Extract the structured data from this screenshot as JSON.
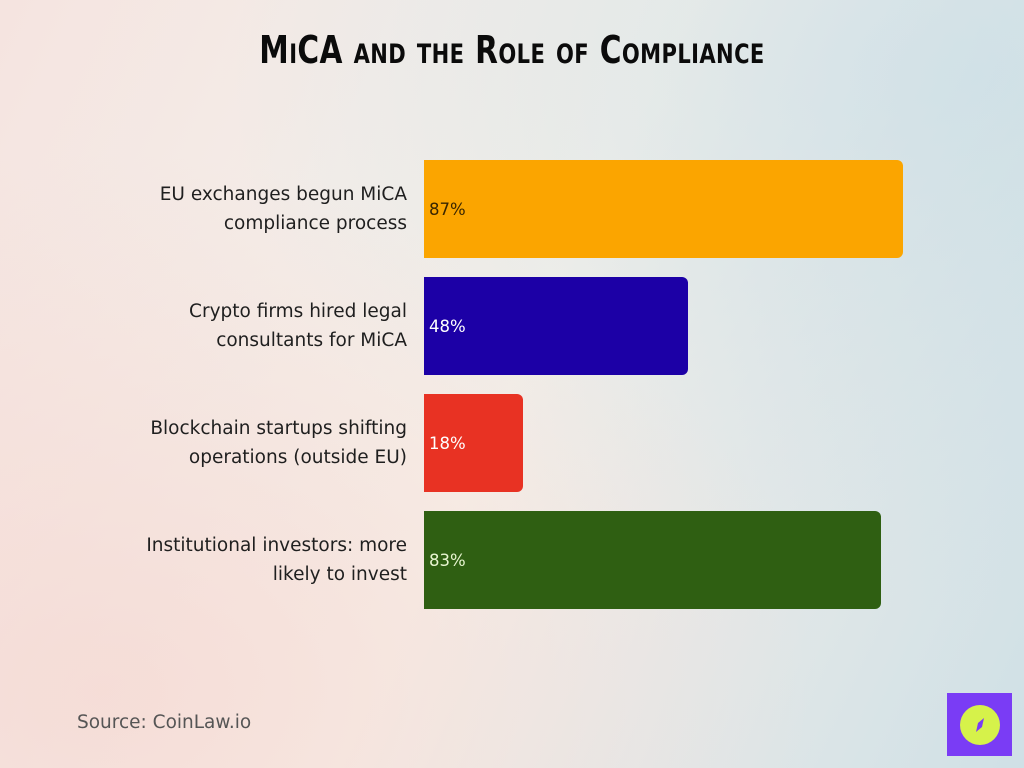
{
  "title": "MiCA and the Role of Compliance",
  "source": "Source: CoinLaw.io",
  "logo": {
    "icon": "compass-icon",
    "bg_color": "#7a3cf5",
    "fg_color": "#d6f24a"
  },
  "bars": [
    {
      "label_line1": "EU exchanges begun MiCA",
      "label_line2": "compliance process",
      "value": 87,
      "value_label": "87%",
      "color": "#fba500",
      "text_color": "#3a2600"
    },
    {
      "label_line1": "Crypto firms hired legal",
      "label_line2": "consultants for MiCA",
      "value": 48,
      "value_label": "48%",
      "color": "#1c00a6",
      "text_color": "#ffffff"
    },
    {
      "label_line1": "Blockchain startups shifting",
      "label_line2": "operations (outside EU)",
      "value": 18,
      "value_label": "18%",
      "color": "#e83223",
      "text_color": "#ffffff"
    },
    {
      "label_line1": "Institutional investors: more",
      "label_line2": "likely to invest",
      "value": 83,
      "value_label": "83%",
      "color": "#2f5f12",
      "text_color": "#e8f5d0"
    }
  ],
  "chart_data": {
    "type": "bar",
    "orientation": "horizontal",
    "title": "MiCA and the Role of Compliance",
    "categories": [
      "EU exchanges begun MiCA compliance process",
      "Crypto firms hired legal consultants for MiCA",
      "Blockchain startups shifting operations (outside EU)",
      "Institutional investors: more likely to invest"
    ],
    "values": [
      87,
      48,
      18,
      83
    ],
    "value_labels": [
      "87%",
      "48%",
      "18%",
      "83%"
    ],
    "colors": [
      "#fba500",
      "#1c00a6",
      "#e83223",
      "#2f5f12"
    ],
    "unit": "%",
    "xlabel": "",
    "ylabel": "",
    "grid": false,
    "legend": null,
    "source": "Source: CoinLaw.io"
  }
}
